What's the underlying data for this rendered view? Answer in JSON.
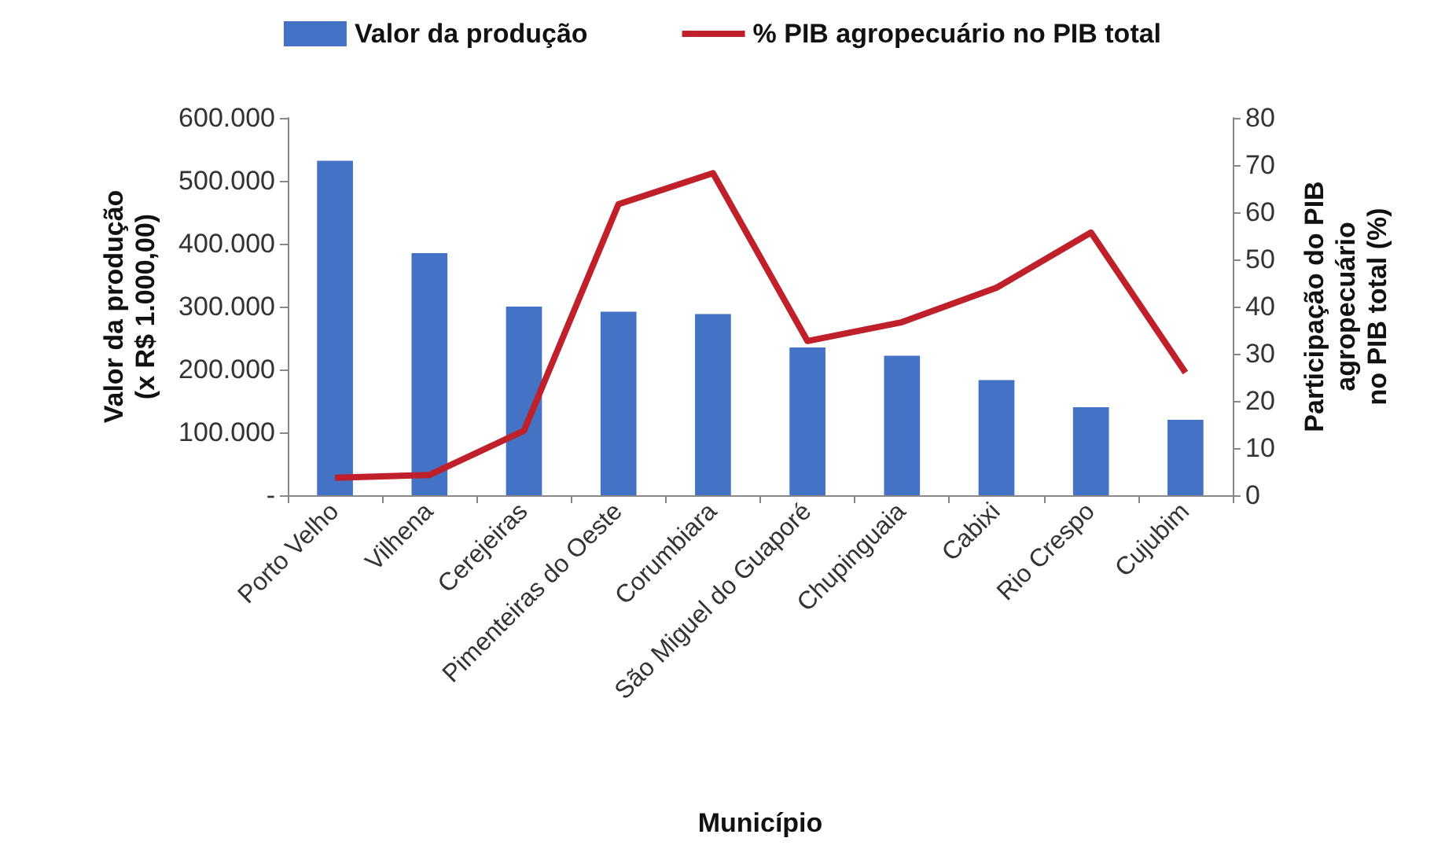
{
  "chart_data": {
    "type": "bar",
    "xlabel": "Município",
    "ylabel": "Valor da produção\n(x R$ 1.000,00)",
    "y2label": "Participação do PIB\nagropecuário\nno PIB total (%)",
    "categories": [
      "Porto Velho",
      "Vilhena",
      "Cerejeiras",
      "Pimenteiras do Oeste",
      "Corumbiara",
      "São Miguel do Guaporé",
      "Chupinguaia",
      "Cabixi",
      "Rio Crespo",
      "Cujubim"
    ],
    "series": [
      {
        "name": "Valor da produção",
        "color": "#4472c4",
        "values": [
          532000,
          385000,
          300000,
          292000,
          288000,
          235000,
          222000,
          183000,
          140000,
          120000
        ]
      },
      {
        "name": "% PIB agropecuário no PIB total",
        "type": "line",
        "axis": "y2",
        "color": "#c0202a",
        "values": [
          3.7,
          4.3,
          13.7,
          61.7,
          68.3,
          32.7,
          36.7,
          44,
          55.7,
          26
        ]
      }
    ],
    "ylim": [
      0,
      600000
    ],
    "yticks": [
      {
        "value": 0,
        "label": "-"
      },
      {
        "value": 100000,
        "label": "100.000"
      },
      {
        "value": 200000,
        "label": "200.000"
      },
      {
        "value": 300000,
        "label": "300.000"
      },
      {
        "value": 400000,
        "label": "400.000"
      },
      {
        "value": 500000,
        "label": "500.000"
      },
      {
        "value": 600000,
        "label": "600.000"
      }
    ],
    "y2lim": [
      0,
      80
    ],
    "y2ticks": [
      0,
      10,
      20,
      30,
      40,
      50,
      60,
      70,
      80
    ],
    "legend": "top",
    "grid": false,
    "marker": "none"
  }
}
